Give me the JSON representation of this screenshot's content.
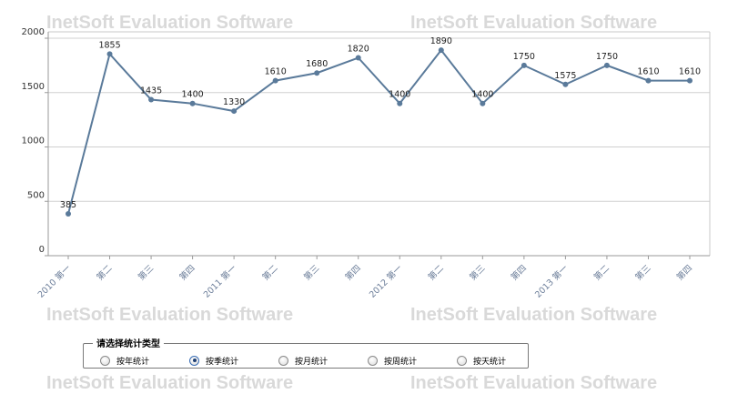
{
  "watermark_text": "InetSoft Evaluation Software",
  "radio_group": {
    "legend": "请选择统计类型",
    "options": [
      {
        "label": "按年统计",
        "checked": false
      },
      {
        "label": "按季统计",
        "checked": true
      },
      {
        "label": "按月统计",
        "checked": false
      },
      {
        "label": "按周统计",
        "checked": false
      },
      {
        "label": "按天统计",
        "checked": false
      }
    ]
  },
  "colors": {
    "line": "#5a7a9a",
    "grid": "#d0d0d0",
    "axis_text": "#333333",
    "category_text": "#6b7d99"
  },
  "chart_data": {
    "type": "line",
    "title": "",
    "xlabel": "",
    "ylabel": "",
    "categories": [
      "2010 第一",
      "第二",
      "第三",
      "第四",
      "2011 第一",
      "第二",
      "第三",
      "第四",
      "2012 第一",
      "第二",
      "第三",
      "第四",
      "2013 第一",
      "第二",
      "第三",
      "第四"
    ],
    "values": [
      385,
      1855,
      1435,
      1400,
      1330,
      1610,
      1680,
      1820,
      1400,
      1890,
      1400,
      1750,
      1575,
      1750,
      1610,
      1610
    ],
    "yticks": [
      0,
      500,
      1000,
      1500,
      2000
    ],
    "ylim": [
      0,
      2000
    ],
    "grid": true,
    "data_labels": true
  }
}
